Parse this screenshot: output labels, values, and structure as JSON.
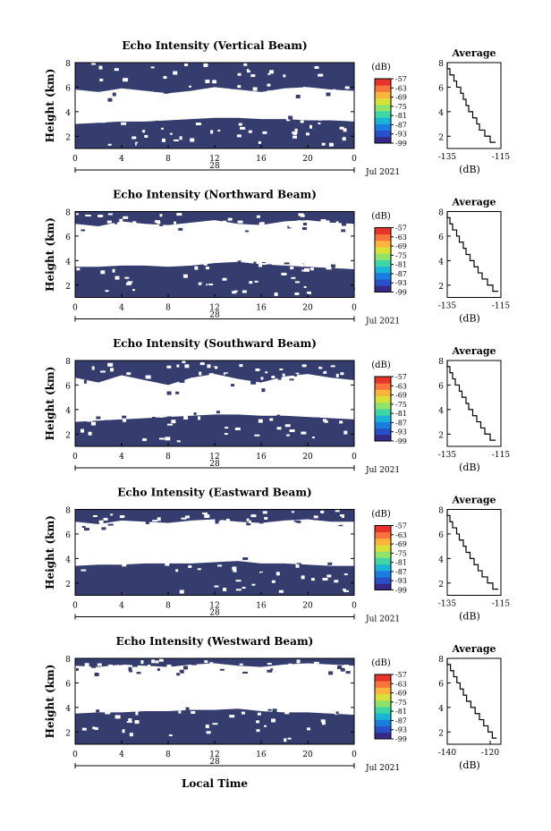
{
  "figure": {
    "xlabel": "Local Time",
    "date_label": "Jul 2021",
    "cbar_unit": "(dB)",
    "avg_title": "Average",
    "avg_xunit": "(dB)"
  },
  "colors": {
    "heatmap_fill": "#353c6e",
    "colorbar": [
      "#352a87",
      "#2850c9",
      "#1a7ee0",
      "#1ab4d6",
      "#3fd6a6",
      "#8fe36a",
      "#d8e03a",
      "#fdb43b",
      "#f9743a",
      "#e8332b"
    ]
  },
  "chart_data": [
    {
      "type": "heatmap",
      "title": "Echo Intensity (Vertical Beam)",
      "ylabel": "Height (km)",
      "x_ticks": [
        "0",
        "4",
        "8",
        "12",
        "16",
        "20",
        "0"
      ],
      "x_day_label": "28",
      "y_ticks": [
        "2",
        "4",
        "6",
        "8"
      ],
      "ylim": [
        1,
        8
      ],
      "xlim": [
        0,
        24
      ],
      "cbar_ticks": [
        "-57",
        "-63",
        "-69",
        "-75",
        "-81",
        "-87",
        "-93",
        "-99"
      ],
      "layers": {
        "lower_top_km": [
          3.0,
          3.1,
          3.2,
          3.2,
          3.3,
          3.4,
          3.5,
          3.5,
          3.4,
          3.4,
          3.3,
          3.3,
          3.2
        ],
        "upper_bottom_km": [
          5.8,
          5.6,
          5.9,
          5.7,
          5.5,
          5.7,
          6.0,
          5.8,
          5.6,
          5.9,
          6.0,
          5.8,
          5.7
        ]
      },
      "average": {
        "xticks": [
          "-135",
          "-115"
        ],
        "xlim": [
          -135,
          -115
        ],
        "y": [
          1.5,
          2.0,
          2.5,
          3.0,
          3.5,
          4.0,
          4.5,
          5.0,
          5.5,
          6.0,
          6.5,
          7.0,
          7.5,
          8.0
        ],
        "x": [
          -117,
          -119,
          -121,
          -123,
          -124,
          -125.5,
          -127,
          -128,
          -129,
          -130,
          -131.5,
          -132.5,
          -134,
          -135
        ]
      }
    },
    {
      "type": "heatmap",
      "title": "Echo Intensity (Northward Beam)",
      "ylabel": "Height (km)",
      "x_ticks": [
        "0",
        "4",
        "8",
        "12",
        "16",
        "20",
        "0"
      ],
      "x_day_label": "28",
      "y_ticks": [
        "2",
        "4",
        "6",
        "8"
      ],
      "ylim": [
        1,
        8
      ],
      "xlim": [
        0,
        24
      ],
      "cbar_ticks": [
        "-57",
        "-63",
        "-69",
        "-75",
        "-81",
        "-87",
        "-93",
        "-99"
      ],
      "layers": {
        "lower_top_km": [
          3.5,
          3.5,
          3.6,
          3.6,
          3.5,
          3.6,
          3.8,
          3.9,
          3.7,
          3.6,
          3.5,
          3.4,
          3.3
        ],
        "upper_bottom_km": [
          7.0,
          6.8,
          7.2,
          7.0,
          6.9,
          7.1,
          7.3,
          7.0,
          6.9,
          7.2,
          7.3,
          7.1,
          7.0
        ]
      },
      "average": {
        "xticks": [
          "-135",
          "-115"
        ],
        "xlim": [
          -135,
          -115
        ],
        "y": [
          1.5,
          2.0,
          2.5,
          3.0,
          3.5,
          4.0,
          4.5,
          5.0,
          5.5,
          6.0,
          6.5,
          7.0,
          7.5,
          8.0
        ],
        "x": [
          -116,
          -118,
          -120,
          -122,
          -123.5,
          -125,
          -126.5,
          -128,
          -129,
          -130.5,
          -131.5,
          -133,
          -134,
          -135
        ]
      }
    },
    {
      "type": "heatmap",
      "title": "Echo Intensity (Southward Beam)",
      "ylabel": "Height (km)",
      "x_ticks": [
        "0",
        "4",
        "8",
        "12",
        "16",
        "20",
        "0"
      ],
      "x_day_label": "28",
      "y_ticks": [
        "2",
        "4",
        "6",
        "8"
      ],
      "ylim": [
        1,
        8
      ],
      "xlim": [
        0,
        24
      ],
      "cbar_ticks": [
        "-57",
        "-63",
        "-69",
        "-75",
        "-81",
        "-87",
        "-93",
        "-99"
      ],
      "layers": {
        "lower_top_km": [
          3.0,
          3.1,
          3.2,
          3.3,
          3.4,
          3.5,
          3.6,
          3.6,
          3.5,
          3.5,
          3.4,
          3.3,
          3.2
        ],
        "upper_bottom_km": [
          6.6,
          6.2,
          6.8,
          6.4,
          6.0,
          6.6,
          6.9,
          6.5,
          6.2,
          6.7,
          6.9,
          6.6,
          6.4
        ]
      },
      "average": {
        "xticks": [
          "-135",
          "-115"
        ],
        "xlim": [
          -135,
          -115
        ],
        "y": [
          1.5,
          2.0,
          2.5,
          3.0,
          3.5,
          4.0,
          4.5,
          5.0,
          5.5,
          6.0,
          6.5,
          7.0,
          7.5,
          8.0
        ],
        "x": [
          -117,
          -119,
          -121,
          -122.5,
          -124,
          -125.5,
          -127,
          -128,
          -129.5,
          -130.5,
          -132,
          -133,
          -134,
          -135
        ]
      }
    },
    {
      "type": "heatmap",
      "title": "Echo Intensity (Eastward Beam)",
      "ylabel": "Height (km)",
      "x_ticks": [
        "0",
        "4",
        "8",
        "12",
        "16",
        "20",
        "0"
      ],
      "x_day_label": "28",
      "y_ticks": [
        "2",
        "4",
        "6",
        "8"
      ],
      "ylim": [
        1,
        8
      ],
      "xlim": [
        0,
        24
      ],
      "cbar_ticks": [
        "-57",
        "-63",
        "-69",
        "-75",
        "-81",
        "-87",
        "-93",
        "-99"
      ],
      "layers": {
        "lower_top_km": [
          3.4,
          3.5,
          3.5,
          3.6,
          3.6,
          3.6,
          3.7,
          3.8,
          3.6,
          3.6,
          3.5,
          3.4,
          3.4
        ],
        "upper_bottom_km": [
          7.0,
          6.8,
          7.1,
          7.0,
          6.9,
          7.1,
          7.2,
          7.0,
          6.9,
          7.1,
          7.2,
          7.0,
          7.0
        ]
      },
      "average": {
        "xticks": [
          "-135",
          "-115"
        ],
        "xlim": [
          -135,
          -115
        ],
        "y": [
          1.5,
          2.0,
          2.5,
          3.0,
          3.5,
          4.0,
          4.5,
          5.0,
          5.5,
          6.0,
          6.5,
          7.0,
          7.5,
          8.0
        ],
        "x": [
          -116,
          -118,
          -120,
          -122,
          -123.5,
          -125,
          -126.5,
          -128,
          -129,
          -130.5,
          -131.5,
          -133,
          -134,
          -135
        ]
      }
    },
    {
      "type": "heatmap",
      "title": "Echo Intensity (Westward Beam)",
      "ylabel": "Height (km)",
      "x_ticks": [
        "0",
        "4",
        "8",
        "12",
        "16",
        "20",
        "0"
      ],
      "x_day_label": "28",
      "y_ticks": [
        "2",
        "4",
        "6",
        "8"
      ],
      "ylim": [
        1,
        8
      ],
      "xlim": [
        0,
        24
      ],
      "cbar_ticks": [
        "-57",
        "-63",
        "-69",
        "-75",
        "-81",
        "-87",
        "-93",
        "-99"
      ],
      "layers": {
        "lower_top_km": [
          3.5,
          3.6,
          3.6,
          3.7,
          3.7,
          3.8,
          3.8,
          3.9,
          3.7,
          3.6,
          3.6,
          3.5,
          3.4
        ],
        "upper_bottom_km": [
          7.4,
          7.3,
          7.5,
          7.4,
          7.3,
          7.5,
          7.6,
          7.4,
          7.3,
          7.5,
          7.6,
          7.5,
          7.4
        ]
      },
      "average": {
        "xticks": [
          "-140",
          "-120"
        ],
        "xlim": [
          -140,
          -115
        ],
        "y": [
          1.5,
          2.0,
          2.5,
          3.0,
          3.5,
          4.0,
          4.5,
          5.0,
          5.5,
          6.0,
          6.5,
          7.0,
          7.5,
          8.0
        ],
        "x": [
          -117,
          -119,
          -121,
          -123,
          -125,
          -127,
          -129,
          -131,
          -132.5,
          -134,
          -135.5,
          -137,
          -138.5,
          -140
        ]
      }
    }
  ]
}
